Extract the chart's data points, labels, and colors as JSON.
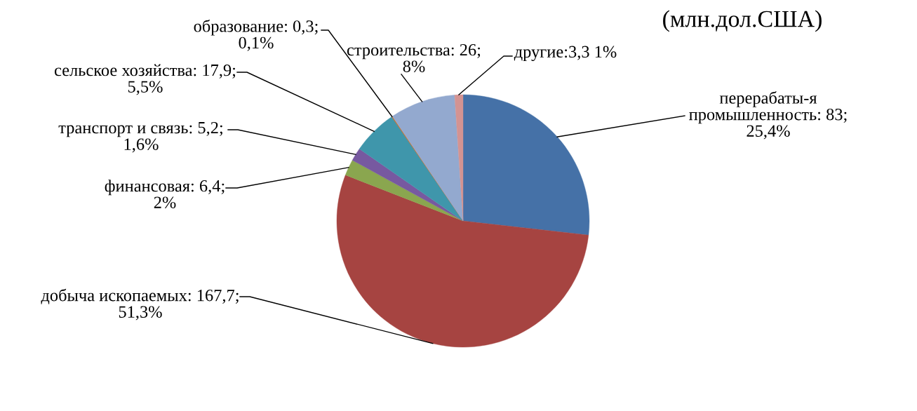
{
  "chart_data": {
    "type": "pie",
    "title": "(млн.дол.США)",
    "categories": [
      "перерабаты-я промышленность",
      "добыча ископаемых",
      "финансовая",
      "транспорт и связь",
      "сельское хозяйства",
      "образование",
      "строительства",
      "другие"
    ],
    "values": [
      83,
      167.7,
      6.4,
      5.2,
      17.9,
      0.3,
      26,
      3.3
    ],
    "value_labels": [
      "83; 25,4%",
      "167,7; 51,3%",
      "6,4; 2%",
      "5,2; 1,6%",
      "17,9; 5,5%",
      "0,3; 0,1%",
      "26; 8%",
      "3,3 1%"
    ],
    "colors": [
      "#4571a7",
      "#a64441",
      "#8aa64f",
      "#7759a0",
      "#3f96ab",
      "#c8661e",
      "#93a9cf",
      "#d39392"
    ]
  }
}
